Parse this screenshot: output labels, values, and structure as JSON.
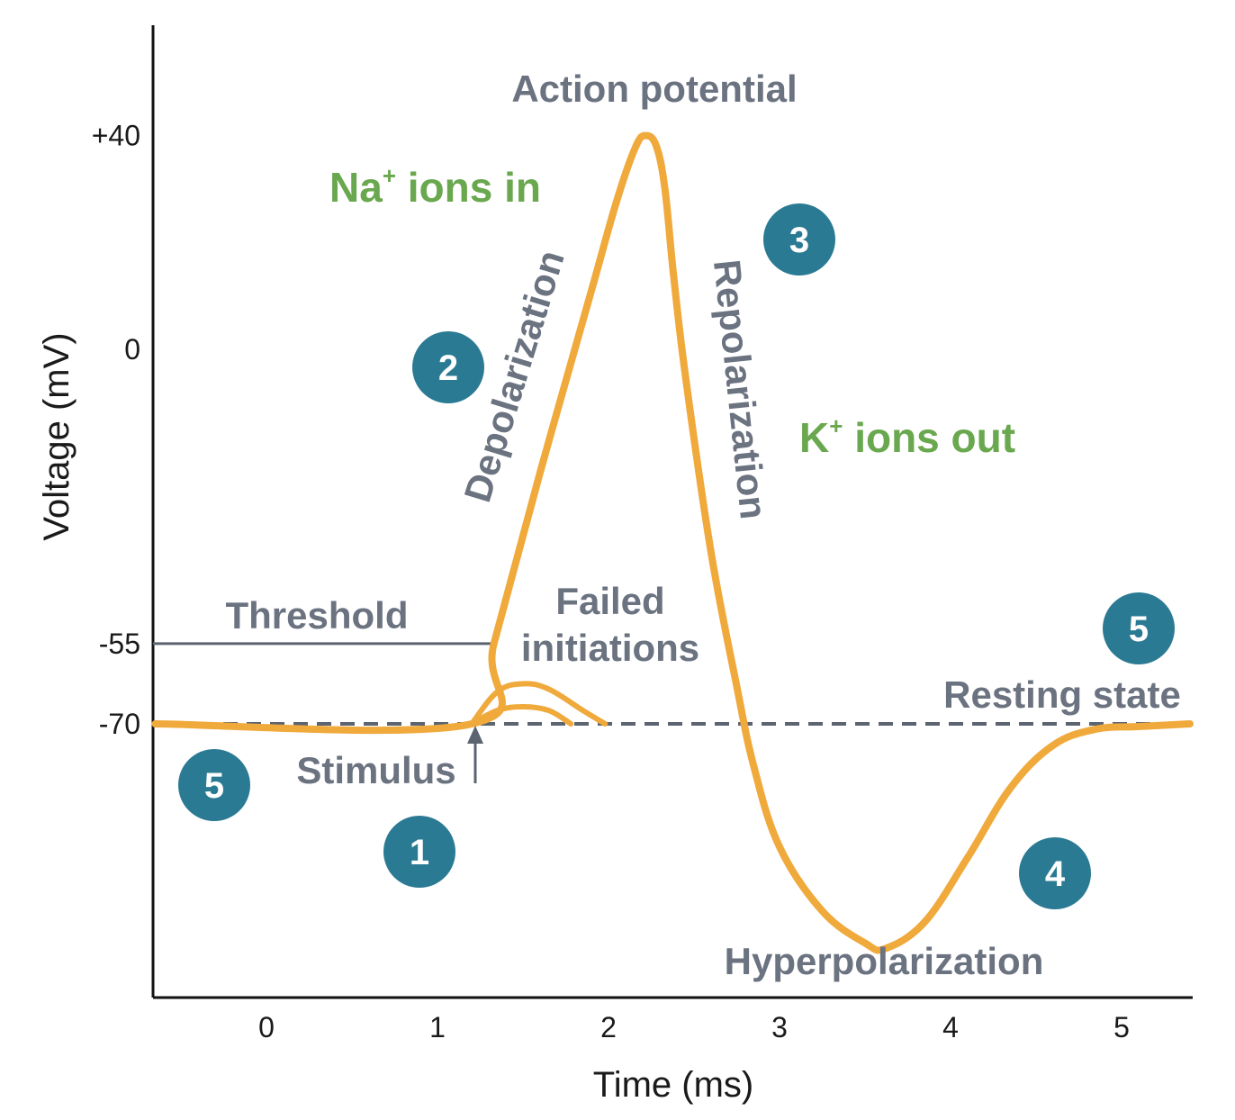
{
  "chart_data": {
    "type": "line",
    "title": "Action potential",
    "xlabel": "Time (ms)",
    "ylabel": "Voltage (mV)",
    "xlim": [
      -0.65,
      5.4
    ],
    "x_ticks": [
      {
        "value": 0,
        "label": "0"
      },
      {
        "value": 1,
        "label": "1"
      },
      {
        "value": 2,
        "label": "2"
      },
      {
        "value": 3,
        "label": "3"
      },
      {
        "value": 4,
        "label": "4"
      },
      {
        "value": 5,
        "label": "5"
      }
    ],
    "y_ticks": [
      {
        "value": 40,
        "label": "+40"
      },
      {
        "value": 0,
        "label": "0"
      },
      {
        "value": -55,
        "label": "-55"
      },
      {
        "value": -70,
        "label": "-70"
      }
    ],
    "series": [
      {
        "name": "Action potential",
        "color": "#f0a93b",
        "x": [
          -0.65,
          1.2,
          1.33,
          1.6,
          1.9,
          2.05,
          2.16,
          2.22,
          2.28,
          2.33,
          2.38,
          2.45,
          2.6,
          2.75,
          2.85,
          3.0,
          3.25,
          3.5,
          3.62,
          3.85,
          4.1,
          4.35,
          4.6,
          4.85,
          5.1,
          5.4
        ],
        "y": [
          -70,
          -70,
          -55,
          -23,
          11,
          28,
          38,
          40,
          38,
          30,
          14,
          -5,
          -38,
          -63,
          -78,
          -93,
          -105,
          -111,
          -112,
          -107,
          -95,
          -82,
          -74,
          -71,
          -70.5,
          -70
        ]
      },
      {
        "name": "Failed initiation (larger)",
        "color": "#f0a93b",
        "x": [
          1.2,
          1.35,
          1.5,
          1.65,
          1.85,
          1.98
        ],
        "y": [
          -70,
          -64,
          -62.5,
          -63.5,
          -67.5,
          -70
        ]
      },
      {
        "name": "Failed initiation (smaller)",
        "color": "#f0a93b",
        "x": [
          1.2,
          1.35,
          1.5,
          1.65,
          1.78
        ],
        "y": [
          -70,
          -67.5,
          -66.8,
          -67.5,
          -70
        ]
      }
    ],
    "reference_lines": {
      "threshold": {
        "value": -55,
        "label": "Threshold",
        "color": "#5b6470"
      },
      "resting": {
        "value": -70,
        "label": "Resting state",
        "color": "#5b6470",
        "style": "dashed"
      }
    },
    "annotations": {
      "action_potential": "Action potential",
      "depolarization": "Depolarization",
      "repolarization": "Repolarization",
      "na_ions": "Na",
      "na_sup": "+",
      "na_rest": " ions in",
      "k_ions": "K",
      "k_sup": "+",
      "k_rest": " ions out",
      "failed_line1": "Failed",
      "failed_line2": "initiations",
      "stimulus": "Stimulus",
      "hyperpolarization": "Hyperpolarization"
    },
    "stage_badges": [
      {
        "number": "1",
        "color": "#2b7a93"
      },
      {
        "number": "2",
        "color": "#2b7a93"
      },
      {
        "number": "3",
        "color": "#2b7a93"
      },
      {
        "number": "4",
        "color": "#2b7a93"
      },
      {
        "number": "5",
        "color": "#2b7a93"
      },
      {
        "number": "5",
        "color": "#2b7a93"
      }
    ],
    "colors": {
      "curve": "#f0a93b",
      "badge": "#2b7a93",
      "ion_label": "#6aa84f",
      "annotation": "#6b7280",
      "axis": "#111111"
    }
  }
}
